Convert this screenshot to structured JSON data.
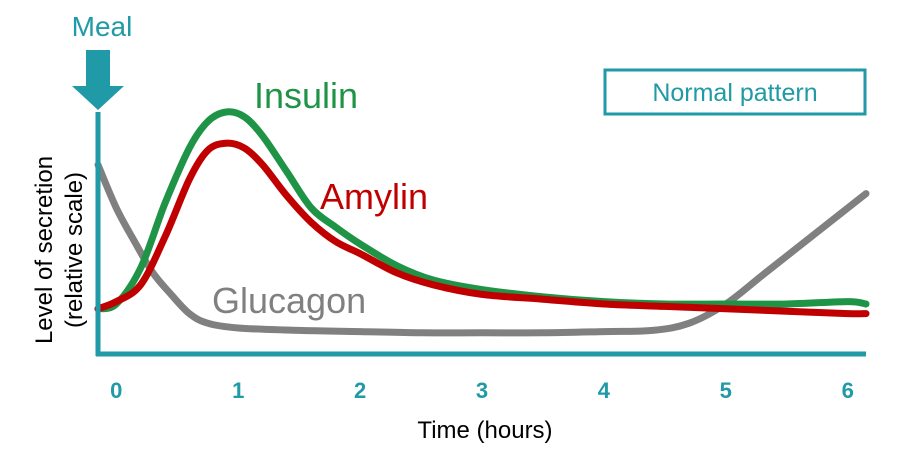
{
  "chart_data": {
    "type": "line",
    "xlabel": "Time (hours)",
    "ylabel": [
      "Level of secretion",
      "(relative scale)"
    ],
    "x_ticks": [
      "0",
      "1",
      "2",
      "3",
      "4",
      "5",
      "6"
    ],
    "xlim": [
      -0.15,
      6.15
    ],
    "ylim": [
      0,
      1
    ],
    "grid": false,
    "annotation": {
      "text": "Meal",
      "x": 0
    },
    "legend_box": "Normal pattern",
    "series": [
      {
        "name": "Insulin",
        "color": "#1f9447",
        "points": [
          [
            -0.15,
            0.18
          ],
          [
            0,
            0.2
          ],
          [
            0.2,
            0.35
          ],
          [
            0.4,
            0.62
          ],
          [
            0.6,
            0.85
          ],
          [
            0.75,
            0.96
          ],
          [
            0.9,
            1.0
          ],
          [
            1.05,
            0.98
          ],
          [
            1.2,
            0.9
          ],
          [
            1.4,
            0.75
          ],
          [
            1.6,
            0.6
          ],
          [
            1.8,
            0.52
          ],
          [
            2.0,
            0.45
          ],
          [
            2.3,
            0.36
          ],
          [
            2.6,
            0.3
          ],
          [
            3.0,
            0.26
          ],
          [
            3.5,
            0.23
          ],
          [
            4.0,
            0.21
          ],
          [
            4.5,
            0.2
          ],
          [
            5.0,
            0.2
          ],
          [
            5.5,
            0.2
          ],
          [
            6.0,
            0.21
          ],
          [
            6.15,
            0.2
          ]
        ]
      },
      {
        "name": "Amylin",
        "color": "#c00000",
        "points": [
          [
            -0.15,
            0.18
          ],
          [
            0,
            0.21
          ],
          [
            0.2,
            0.28
          ],
          [
            0.4,
            0.48
          ],
          [
            0.6,
            0.72
          ],
          [
            0.75,
            0.84
          ],
          [
            0.9,
            0.87
          ],
          [
            1.05,
            0.85
          ],
          [
            1.2,
            0.78
          ],
          [
            1.4,
            0.65
          ],
          [
            1.6,
            0.54
          ],
          [
            1.8,
            0.46
          ],
          [
            2.0,
            0.41
          ],
          [
            2.3,
            0.33
          ],
          [
            2.6,
            0.28
          ],
          [
            3.0,
            0.24
          ],
          [
            3.5,
            0.22
          ],
          [
            4.0,
            0.2
          ],
          [
            4.5,
            0.19
          ],
          [
            5.0,
            0.18
          ],
          [
            5.5,
            0.17
          ],
          [
            6.0,
            0.16
          ],
          [
            6.15,
            0.16
          ]
        ]
      },
      {
        "name": "Glucagon",
        "color": "#808080",
        "points": [
          [
            -0.15,
            0.78
          ],
          [
            0,
            0.6
          ],
          [
            0.15,
            0.46
          ],
          [
            0.3,
            0.33
          ],
          [
            0.45,
            0.24
          ],
          [
            0.6,
            0.16
          ],
          [
            0.75,
            0.12
          ],
          [
            1.0,
            0.1
          ],
          [
            1.5,
            0.09
          ],
          [
            2.0,
            0.085
          ],
          [
            2.5,
            0.08
          ],
          [
            3.0,
            0.08
          ],
          [
            3.5,
            0.08
          ],
          [
            4.0,
            0.085
          ],
          [
            4.4,
            0.09
          ],
          [
            4.7,
            0.12
          ],
          [
            5.0,
            0.2
          ],
          [
            5.3,
            0.32
          ],
          [
            5.6,
            0.44
          ],
          [
            5.9,
            0.56
          ],
          [
            6.15,
            0.66
          ]
        ]
      }
    ]
  }
}
